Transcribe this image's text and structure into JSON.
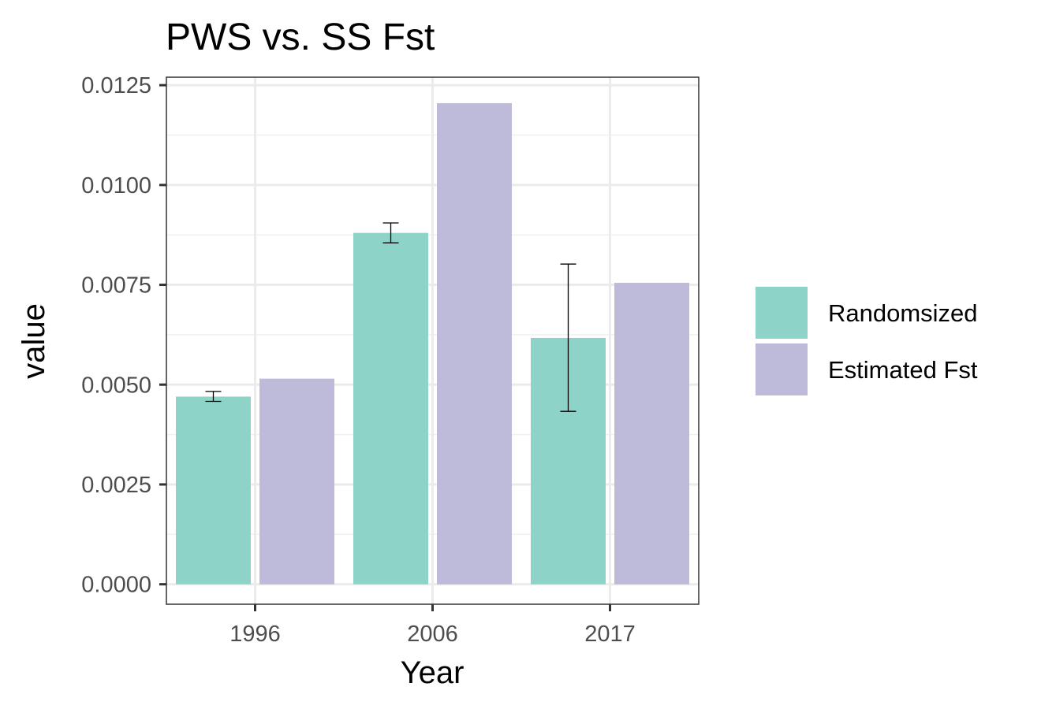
{
  "chart_data": {
    "type": "bar",
    "title": "PWS vs. SS Fst",
    "xlabel": "Year",
    "ylabel": "value",
    "categories": [
      "1996",
      "2006",
      "2017"
    ],
    "series": [
      {
        "name": "Randomsized",
        "color": "#8ED3C7",
        "values": [
          0.0047,
          0.0088,
          0.00617
        ],
        "error_low": [
          0.00458,
          0.00855,
          0.00433
        ],
        "error_high": [
          0.00483,
          0.00905,
          0.00802
        ]
      },
      {
        "name": "Estimated Fst",
        "color": "#BEBADA",
        "values": [
          0.00515,
          0.01205,
          0.00755
        ]
      }
    ],
    "ylim": [
      -0.0005,
      0.0127
    ],
    "yticks": [
      "0.0000",
      "0.0025",
      "0.0050",
      "0.0075",
      "0.0100",
      "0.0125"
    ],
    "ytick_values": [
      0,
      0.0025,
      0.005,
      0.0075,
      0.01,
      0.0125
    ],
    "grid": true,
    "legend_position": "right"
  }
}
